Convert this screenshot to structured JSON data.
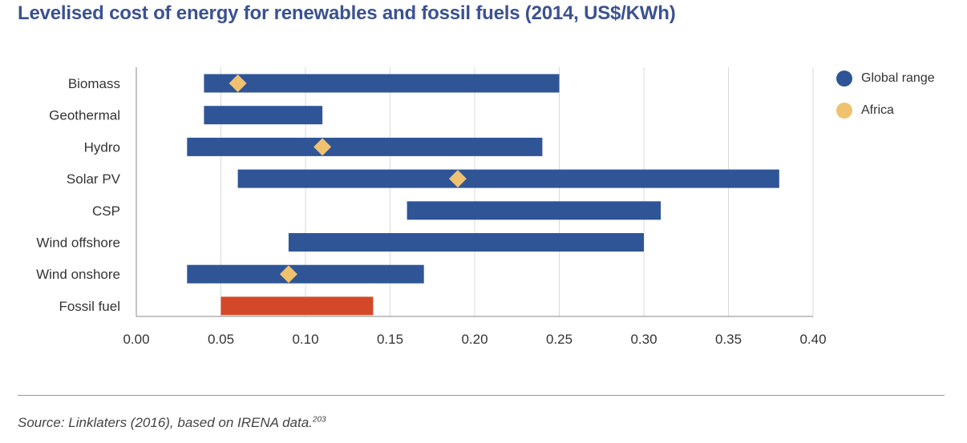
{
  "title": "Levelised cost of energy for renewables and fossil fuels (2014, US$/KWh)",
  "source": {
    "text": "Source: Linklaters (2016), based on IRENA data.",
    "footnote": "203"
  },
  "legend": [
    {
      "label": "Global range",
      "color": "#2f5597"
    },
    {
      "label": "Africa",
      "color": "#f0c270"
    }
  ],
  "chart_data": {
    "type": "bar",
    "orientation": "horizontal-range",
    "title": "Levelised cost of energy for renewables and fossil fuels (2014, US$/KWh)",
    "xlim": [
      0,
      0.4
    ],
    "xticks": [
      "0.00",
      "0.05",
      "0.10",
      "0.15",
      "0.20",
      "0.25",
      "0.30",
      "0.35",
      "0.40"
    ],
    "grid": true,
    "legend_position": "top-right",
    "categories": [
      "Biomass",
      "Geothermal",
      "Hydro",
      "Solar PV",
      "CSP",
      "Wind offshore",
      "Wind onshore",
      "Fossil fuel"
    ],
    "series": [
      {
        "name": "Global range",
        "color": "#2f5597",
        "ranges": [
          [
            0.04,
            0.25
          ],
          [
            0.04,
            0.11
          ],
          [
            0.03,
            0.24
          ],
          [
            0.06,
            0.38
          ],
          [
            0.16,
            0.31
          ],
          [
            0.09,
            0.3
          ],
          [
            0.03,
            0.17
          ],
          [
            0.05,
            0.14
          ]
        ],
        "highlight": {
          "category": "Fossil fuel",
          "color": "#d4482a"
        }
      },
      {
        "name": "Africa",
        "color": "#f0c270",
        "values": [
          0.06,
          null,
          0.11,
          0.19,
          null,
          null,
          0.09,
          null
        ]
      }
    ]
  }
}
